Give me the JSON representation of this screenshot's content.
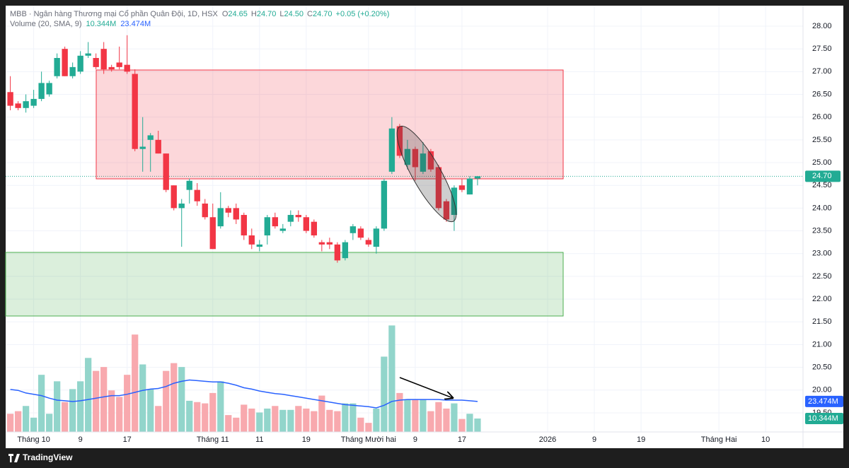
{
  "chart_data": {
    "type": "candlestick",
    "legend": {
      "symbol": "MBB · Ngân hàng Thương mại Cổ phần Quân Đội, 1D, HSX",
      "fields": [
        {
          "key": "O",
          "value": "24.65"
        },
        {
          "key": "H",
          "value": "24.70"
        },
        {
          "key": "L",
          "value": "24.50"
        },
        {
          "key": "C",
          "value": "24.70"
        }
      ],
      "change": "+0.05 (+0.20%)"
    },
    "up_color": "#22ab94",
    "down_color": "#f23645",
    "open": [
      26.55,
      26.3,
      26.2,
      26.25,
      26.4,
      26.5,
      26.9,
      27.5,
      26.9,
      27.0,
      27.35,
      27.3,
      27.5,
      27.1,
      27.2,
      27.15,
      26.95,
      25.3,
      25.5,
      25.5,
      25.2,
      24.5,
      24.0,
      24.4,
      24.4,
      24.1,
      23.8,
      23.6,
      24.0,
      24.0,
      23.85,
      23.4,
      23.15,
      23.4,
      23.8,
      23.5,
      23.7,
      23.85,
      23.8,
      23.7,
      23.25,
      23.25,
      23.2,
      22.9,
      23.45,
      23.55,
      23.3,
      23.15,
      23.55,
      24.8,
      25.8,
      24.95,
      25.3,
      24.8,
      25.25,
      24.9,
      24.15,
      23.85,
      24.5,
      24.3,
      24.65
    ],
    "high": [
      26.9,
      26.35,
      26.5,
      26.6,
      27.0,
      26.8,
      27.4,
      27.55,
      27.2,
      27.45,
      27.65,
      27.4,
      27.65,
      27.15,
      27.55,
      27.8,
      27.05,
      26.0,
      25.65,
      25.7,
      25.2,
      24.5,
      24.2,
      24.65,
      24.55,
      24.2,
      24.1,
      24.35,
      24.05,
      24.1,
      23.9,
      23.55,
      23.3,
      23.85,
      23.9,
      23.65,
      23.95,
      23.95,
      23.85,
      23.75,
      23.3,
      23.35,
      23.25,
      23.3,
      23.65,
      23.6,
      23.35,
      23.6,
      24.65,
      26.0,
      25.85,
      25.5,
      25.35,
      25.45,
      25.3,
      24.95,
      24.2,
      24.5,
      24.65,
      24.7,
      24.7
    ],
    "low": [
      26.15,
      26.15,
      26.1,
      26.2,
      26.35,
      26.45,
      26.85,
      26.9,
      26.85,
      26.95,
      27.3,
      27.05,
      26.95,
      27.0,
      27.05,
      26.95,
      25.25,
      24.8,
      24.8,
      25.2,
      24.35,
      23.95,
      23.15,
      24.1,
      24.05,
      23.75,
      23.1,
      23.55,
      23.8,
      23.65,
      23.3,
      23.1,
      23.05,
      23.2,
      23.55,
      23.45,
      23.6,
      23.7,
      23.45,
      23.35,
      23.05,
      23.1,
      22.8,
      22.85,
      23.3,
      23.3,
      23.15,
      23.0,
      23.5,
      24.75,
      25.1,
      24.85,
      24.6,
      24.75,
      24.8,
      23.95,
      23.7,
      23.5,
      24.35,
      24.3,
      24.5
    ],
    "close": [
      26.25,
      26.2,
      26.35,
      26.4,
      26.75,
      26.75,
      27.3,
      26.9,
      27.1,
      27.35,
      27.4,
      27.1,
      27.05,
      27.05,
      27.1,
      27.0,
      25.3,
      25.35,
      25.6,
      25.2,
      24.4,
      24.0,
      24.1,
      24.6,
      24.15,
      23.8,
      23.1,
      24.0,
      23.9,
      23.75,
      23.4,
      23.2,
      23.2,
      23.8,
      23.6,
      23.55,
      23.85,
      23.8,
      23.5,
      23.4,
      23.2,
      23.2,
      22.85,
      23.25,
      23.6,
      23.35,
      23.2,
      23.55,
      24.6,
      25.75,
      25.15,
      25.3,
      24.9,
      25.2,
      24.85,
      24.0,
      23.75,
      24.45,
      24.4,
      24.65,
      24.7
    ],
    "last_label": "24.70",
    "xlim": [
      -0.6,
      101.8
    ],
    "xticks": [
      {
        "value": 3,
        "label": "Tháng 10"
      },
      {
        "value": 9,
        "label": "9"
      },
      {
        "value": 15,
        "label": "17"
      },
      {
        "value": 26,
        "label": "Tháng 11"
      },
      {
        "value": 32,
        "label": "11"
      },
      {
        "value": 38,
        "label": "19"
      },
      {
        "value": 46,
        "label": "Tháng Mười hai"
      },
      {
        "value": 52,
        "label": "9"
      },
      {
        "value": 58,
        "label": "17"
      },
      {
        "value": 69,
        "label": "2026"
      },
      {
        "value": 75,
        "label": "9"
      },
      {
        "value": 81,
        "label": "19"
      },
      {
        "value": 91,
        "label": "Tháng Hai"
      },
      {
        "value": 97,
        "label": "10"
      }
    ],
    "ylim": [
      19.08,
      28.45
    ],
    "yticks": [
      {
        "value": 19.5,
        "label": "19.50"
      },
      {
        "value": 20,
        "label": "20.00"
      },
      {
        "value": 20.5,
        "label": "20.50"
      },
      {
        "value": 21,
        "label": "21.00"
      },
      {
        "value": 21.5,
        "label": "21.50"
      },
      {
        "value": 22,
        "label": "22.00"
      },
      {
        "value": 22.5,
        "label": "22.50"
      },
      {
        "value": 23,
        "label": "23.00"
      },
      {
        "value": 23.5,
        "label": "23.50"
      },
      {
        "value": 24,
        "label": "24.00"
      },
      {
        "value": 24.5,
        "label": "24.50"
      },
      {
        "value": 25,
        "label": "25.00"
      },
      {
        "value": 25.5,
        "label": "25.50"
      },
      {
        "value": 26,
        "label": "26.00"
      },
      {
        "value": 26.5,
        "label": "26.50"
      },
      {
        "value": 27,
        "label": "27.00"
      },
      {
        "value": 27.5,
        "label": "27.50"
      },
      {
        "value": 28,
        "label": "28.00"
      }
    ],
    "grid": true,
    "volume": {
      "name": "Volume (20, SMA, 9)",
      "values": [
        14,
        16,
        20,
        11,
        44,
        14,
        39,
        23,
        33,
        39,
        57,
        47,
        50,
        32,
        27,
        44,
        75,
        52,
        33,
        20,
        47,
        53,
        50,
        24,
        23,
        22,
        30,
        39,
        13,
        11,
        21,
        18,
        15,
        18,
        20,
        17,
        17,
        20,
        18,
        16,
        28,
        17,
        16,
        22,
        22,
        11,
        7,
        18,
        58,
        82,
        30,
        25,
        25,
        25,
        16,
        23,
        18,
        22,
        10,
        14,
        10.344
      ],
      "last_label": "10.344M",
      "ylim": [
        0,
        100
      ],
      "up_color": "#92d5cb",
      "down_color": "#f8a9ae",
      "sma": {
        "values": [
          32.7,
          32,
          30,
          29,
          28,
          26,
          24.5,
          24,
          23.4,
          24,
          25,
          26,
          27,
          28,
          28,
          29,
          30.5,
          32,
          33,
          33.5,
          35,
          37.5,
          39,
          40,
          39.5,
          39,
          38.5,
          38.5,
          37.5,
          36,
          34,
          33,
          31.5,
          30.5,
          29.5,
          29,
          28,
          27,
          26,
          25,
          24,
          23,
          22,
          21,
          20.5,
          20,
          19.5,
          18.5,
          20.5,
          23.5,
          24.5,
          25,
          25,
          25,
          25,
          25,
          24.5,
          24.5,
          24.5,
          24,
          23.474
        ],
        "last_label": "23.474M",
        "color": "#2962ff"
      }
    }
  },
  "footer": {
    "brand": "TradingView"
  }
}
